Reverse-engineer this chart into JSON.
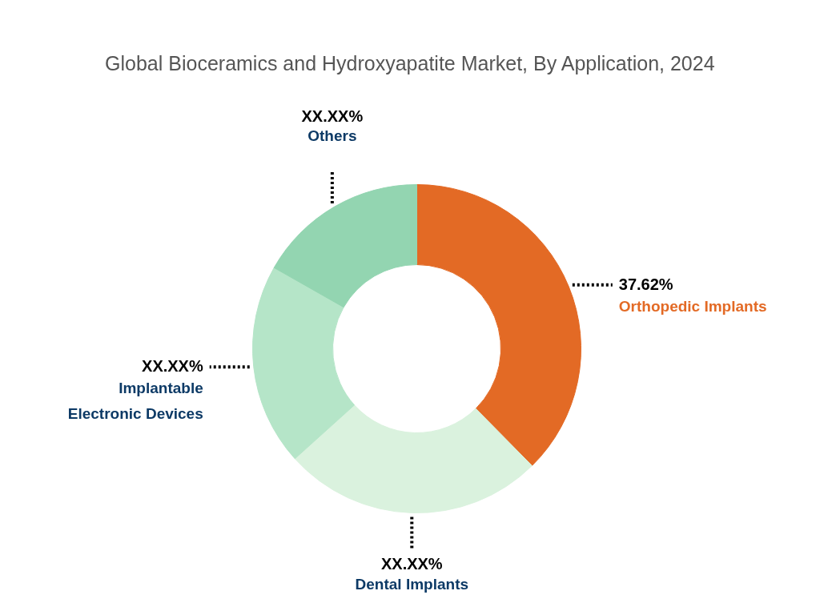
{
  "chart_data": {
    "type": "donut",
    "title": "Global Bioceramics and Hydroxyapatite Market, By Application, 2024",
    "categories": [
      "Orthopedic Implants",
      "Dental Implants",
      "Implantable Electronic Devices",
      "Others"
    ],
    "values": [
      37.62,
      25.7,
      19.9,
      16.78
    ],
    "value_labels": [
      "37.62%",
      "XX.XX%",
      "XX.XX%",
      "XX.XX%"
    ],
    "colors": [
      "#e36a25",
      "#daf2de",
      "#b5e5c8",
      "#93d5b1"
    ],
    "legend": false
  }
}
